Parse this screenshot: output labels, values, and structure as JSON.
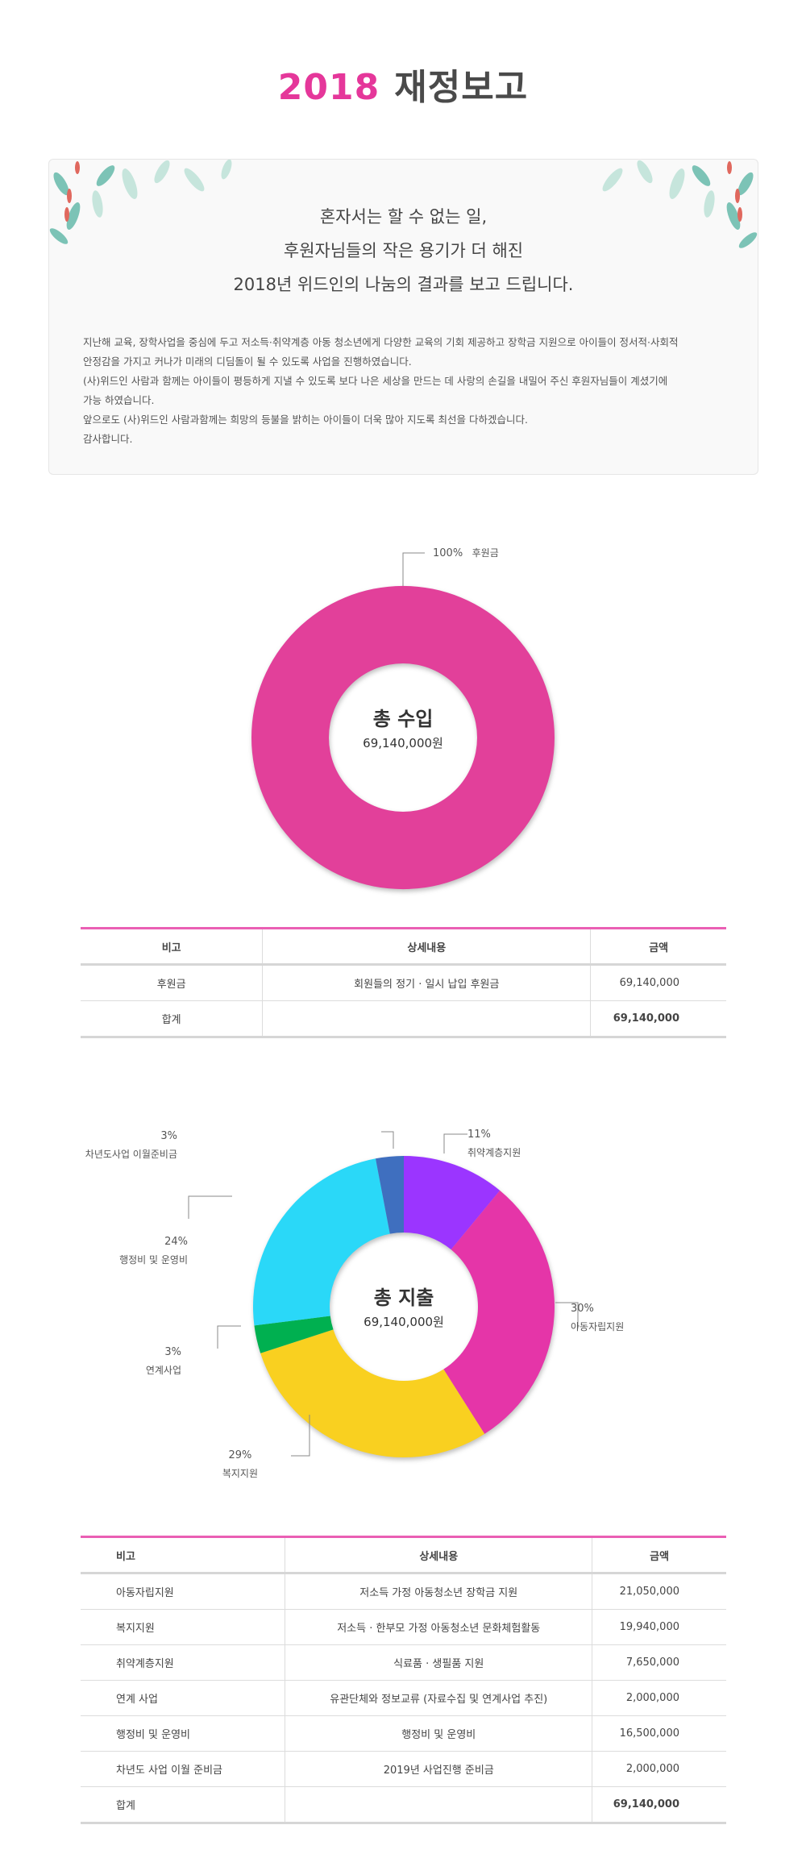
{
  "title": {
    "year": "2018",
    "text": "재정보고",
    "accent_color": "#e5379a"
  },
  "intro": {
    "headline": [
      "혼자서는 할 수 없는 일,",
      "후원자님들의 작은 용기가 더 해진",
      "2018년 위드인의 나눔의 결과를 보고 드립니다."
    ],
    "body": [
      "지난해 교육, 장학사업을 중심에 두고 저소득·취약계층 아동 청소년에게 다양한 교육의 기회 제공하고  장학금 지원으로 아이들이 정서적·사회적",
      "안정감을 가지고 커나가 미래의 디딤돌이 될 수 있도록 사업을 진행하였습니다.",
      "(사)위드인 사람과 함께는 아이들이 평등하게 지낼 수 있도록 보다 나은 세상을 만드는 데 사랑의 손길을 내밀어 주신 후원자님들이 계셨기에",
      "가능 하였습니다.",
      "앞으로도 (사)위드인 사람과함께는 희망의 등불을 밝히는 아이들이 더욱 많아 지도록 최선을 다하겠습니다.",
      "감사합니다."
    ]
  },
  "income": {
    "center_title": "총 수입",
    "center_amount": "69,140,000원",
    "chart_data": {
      "type": "pie",
      "categories": [
        "후원금"
      ],
      "values": [
        100
      ],
      "labels": [
        "100%"
      ],
      "colors": [
        "#e2409a"
      ]
    },
    "table": {
      "headers": [
        "비고",
        "상세내용",
        "금액"
      ],
      "rows": [
        [
          "후원금",
          "회원들의 정기 · 일시 납입 후원금",
          "69,140,000"
        ]
      ],
      "total": [
        "합계",
        "",
        "69,140,000"
      ]
    }
  },
  "expense": {
    "center_title": "총 지출",
    "center_amount": "69,140,000원",
    "chart_data": {
      "type": "pie",
      "categories": [
        "취약계층지원",
        "아동자립지원",
        "복지지원",
        "연계사업",
        "행정비 및 운영비",
        "차년도사업 이월준비금"
      ],
      "values": [
        11,
        30,
        29,
        3,
        24,
        3
      ],
      "labels": [
        "11%",
        "30%",
        "29%",
        "3%",
        "24%",
        "3%"
      ],
      "colors": [
        "#9b35ff",
        "#e535a8",
        "#f9d020",
        "#00b050",
        "#2ad8f8",
        "#3f6fbf"
      ]
    },
    "table": {
      "headers": [
        "비고",
        "상세내용",
        "금액"
      ],
      "rows": [
        [
          "아동자립지원",
          "저소득 가정 아동청소년 장학금 지원",
          "21,050,000"
        ],
        [
          "복지지원",
          "저소득 · 한부모 가정 아동청소년 문화체험활동",
          "19,940,000"
        ],
        [
          "취약계층지원",
          "식료품 · 생필품 지원",
          "7,650,000"
        ],
        [
          "연계 사업",
          "유관단체와 정보교류 (자료수집 및 연계사업 추진)",
          "2,000,000"
        ],
        [
          "행정비 및 운영비",
          "행정비 및 운영비",
          "16,500,000"
        ],
        [
          "차년도 사업 이월 준비금",
          "2019년 사업진행 준비금",
          "2,000,000"
        ]
      ],
      "total": [
        "합계",
        "",
        "69,140,000"
      ]
    }
  }
}
